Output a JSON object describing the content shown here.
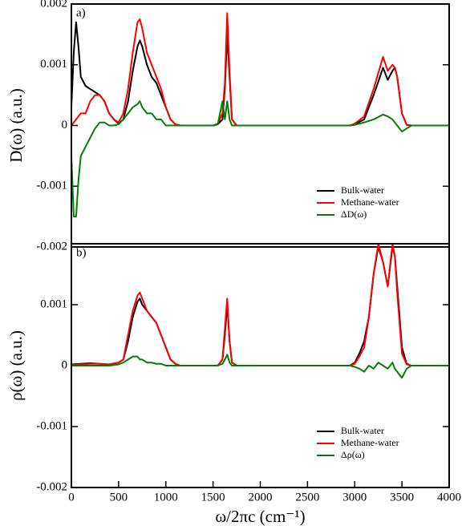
{
  "chart_data": [
    {
      "type": "line",
      "panel_label": "a)",
      "y_label": "D(ω) (a.u.)",
      "xlim": [
        0,
        4000
      ],
      "ylim": [
        -0.002,
        0.002
      ],
      "yticks": [
        -0.002,
        -0.001,
        0,
        0.001,
        0.002
      ],
      "legend": "lower right",
      "x": [
        0,
        25,
        50,
        75,
        100,
        150,
        200,
        250,
        300,
        350,
        400,
        450,
        500,
        550,
        600,
        650,
        700,
        725,
        750,
        800,
        850,
        900,
        950,
        1000,
        1050,
        1100,
        1150,
        1500,
        1550,
        1600,
        1625,
        1650,
        1675,
        1700,
        1750,
        2950,
        3000,
        3100,
        3200,
        3300,
        3350,
        3400,
        3425,
        3450,
        3500,
        3550,
        3600,
        4000
      ],
      "series": [
        {
          "name": "Bulk-water",
          "color": "#000000",
          "values": [
            0.0003,
            0.0012,
            0.0017,
            0.0013,
            0.0008,
            0.00065,
            0.0006,
            0.00055,
            0.0005,
            0.0004,
            0.0002,
            0.0001,
            3e-05,
            0.0001,
            0.0004,
            0.0009,
            0.0013,
            0.0014,
            0.0013,
            0.001,
            0.0008,
            0.0007,
            0.0005,
            0.0003,
            0.0001,
            2e-05,
            0,
            0,
            2e-05,
            0.0001,
            0.0006,
            0.0015,
            0.0008,
            0.0001,
            0,
            0,
            2e-05,
            0.0001,
            0.0005,
            0.00095,
            0.00075,
            0.0009,
            0.00095,
            0.0008,
            0.0002,
            1e-05,
            0,
            0
          ]
        },
        {
          "name": "Methane-water",
          "color": "#ff0000",
          "values": [
            0,
            5e-05,
            0.0001,
            0.00015,
            0.0002,
            0.0002,
            0.0004,
            0.0005,
            0.0005,
            0.0004,
            0.0002,
            0.0001,
            5e-05,
            0.0002,
            0.0006,
            0.0012,
            0.0017,
            0.00175,
            0.0016,
            0.0012,
            0.001,
            0.0008,
            0.0006,
            0.0003,
            0.0001,
            2e-05,
            0,
            0,
            3e-05,
            0.0002,
            0.0007,
            0.00185,
            0.0009,
            0.0001,
            0,
            0,
            3e-05,
            0.00015,
            0.0006,
            0.00113,
            0.0009,
            0.001,
            0.00095,
            0.0008,
            0.0002,
            1e-05,
            0,
            0
          ]
        },
        {
          "name": "ΔD(ω)",
          "color": "#008000",
          "values": [
            -0.0005,
            -0.0015,
            -0.0015,
            -0.0009,
            -0.0005,
            -0.00035,
            -0.0002,
            -5e-05,
            5e-05,
            5e-05,
            0,
            0,
            2e-05,
            0.0001,
            0.0002,
            0.0003,
            0.00035,
            0.0004,
            0.0003,
            0.0002,
            0.0002,
            0.0001,
            0.0001,
            0,
            0,
            0,
            0,
            0,
            2e-05,
            0.0004,
            0.0001,
            0.0004,
            0.0001,
            0,
            0,
            0,
            1e-05,
            5e-05,
            0.0001,
            0.00018,
            0.00015,
            0.0001,
            5e-05,
            0,
            -0.0001,
            -5e-05,
            0,
            0
          ]
        }
      ]
    },
    {
      "type": "line",
      "panel_label": "b)",
      "y_label": "ρ(ω) (a.u.)",
      "x_label": "ω/2πc (cm⁻¹)",
      "xlim": [
        0,
        4000
      ],
      "xticks": [
        0,
        500,
        1000,
        1500,
        2000,
        2500,
        3000,
        3500,
        4000
      ],
      "ylim": [
        -0.002,
        0.002
      ],
      "yticks": [
        -0.002,
        -0.001,
        0,
        0.001
      ],
      "legend": "lower right",
      "x": [
        0,
        100,
        200,
        300,
        400,
        500,
        550,
        600,
        650,
        700,
        725,
        750,
        800,
        850,
        900,
        950,
        1000,
        1050,
        1100,
        1150,
        1550,
        1600,
        1625,
        1650,
        1675,
        1700,
        1750,
        2950,
        3000,
        3050,
        3100,
        3150,
        3200,
        3250,
        3300,
        3350,
        3400,
        3425,
        3450,
        3500,
        3550,
        3600,
        4000
      ],
      "series": [
        {
          "name": "Bulk-water",
          "color": "#000000",
          "values": [
            2e-05,
            3e-05,
            4e-05,
            3e-05,
            2e-05,
            5e-05,
            0.0001,
            0.0004,
            0.0008,
            0.00105,
            0.0011,
            0.001,
            0.0009,
            0.0008,
            0.0007,
            0.0005,
            0.0003,
            0.0001,
            3e-05,
            0,
            0,
            0.0001,
            0.0005,
            0.001,
            0.0004,
            5e-05,
            0,
            0,
            5e-05,
            0.0002,
            0.0004,
            0.0008,
            0.0015,
            0.00195,
            0.0017,
            0.0013,
            0.00195,
            0.0018,
            0.0013,
            0.0003,
            3e-05,
            0,
            0
          ]
        },
        {
          "name": "Methane-water",
          "color": "#ff0000",
          "values": [
            1e-05,
            2e-05,
            3e-05,
            3e-05,
            2e-05,
            5e-05,
            0.0001,
            0.0005,
            0.0009,
            0.00115,
            0.0012,
            0.0011,
            0.0009,
            0.0008,
            0.0007,
            0.0005,
            0.0003,
            0.0001,
            3e-05,
            0,
            0,
            0.0001,
            0.0006,
            0.0011,
            0.0004,
            5e-05,
            0,
            0,
            3e-05,
            0.00015,
            0.0003,
            0.0008,
            0.0015,
            0.002,
            0.0017,
            0.0013,
            0.002,
            0.0018,
            0.0012,
            0.0002,
            2e-05,
            0,
            0
          ]
        },
        {
          "name": "Δρ(ω)",
          "color": "#008000",
          "values": [
            0,
            0,
            0,
            0,
            0,
            2e-05,
            5e-05,
            0.0001,
            0.00015,
            0.00015,
            0.0001,
            0.0001,
            5e-05,
            5e-05,
            3e-05,
            3e-05,
            0,
            0,
            0,
            0,
            0,
            3e-05,
            0.0001,
            0.00018,
            5e-05,
            0,
            0,
            0,
            -2e-05,
            -5e-05,
            -0.0001,
            0,
            -5e-05,
            5e-05,
            0,
            -5e-05,
            5e-05,
            -5e-05,
            -0.0001,
            -0.0002,
            -5e-05,
            0,
            0
          ]
        }
      ]
    }
  ]
}
